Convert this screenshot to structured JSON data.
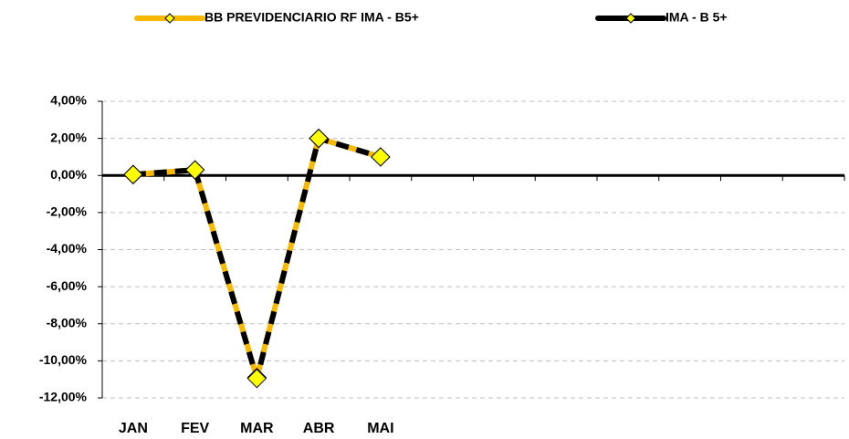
{
  "chart_data": {
    "type": "line",
    "categories": [
      "JAN",
      "FEV",
      "MAR",
      "ABR",
      "MAI",
      null,
      null,
      null,
      null,
      null,
      null,
      null
    ],
    "series": [
      {
        "name": "BB PREVIDENCIARIO RF IMA - B5+",
        "color": "#f8b800",
        "marker_color": "#ffff00",
        "values": [
          0.05,
          0.3,
          -10.9,
          2.0,
          1.0,
          null,
          null,
          null,
          null,
          null,
          null,
          null
        ]
      },
      {
        "name": "IMA - B 5+",
        "color": "#000000",
        "marker_color": "#ffff00",
        "values": [
          0.05,
          0.3,
          -10.95,
          2.0,
          1.0,
          null,
          null,
          null,
          null,
          null,
          null,
          null
        ]
      }
    ],
    "ylim": [
      -12,
      4
    ],
    "yticks": [
      {
        "value": 4,
        "label": "4,00%"
      },
      {
        "value": 2,
        "label": "2,00%"
      },
      {
        "value": 0,
        "label": "0,00%"
      },
      {
        "value": -2,
        "label": "-2,00%"
      },
      {
        "value": -4,
        "label": "-4,00%"
      },
      {
        "value": -6,
        "label": "-6,00%"
      },
      {
        "value": -8,
        "label": "-8,00%"
      },
      {
        "value": -10,
        "label": "-10,00%"
      },
      {
        "value": -12,
        "label": "-12,00%"
      }
    ],
    "grid": true,
    "legend": "top"
  }
}
